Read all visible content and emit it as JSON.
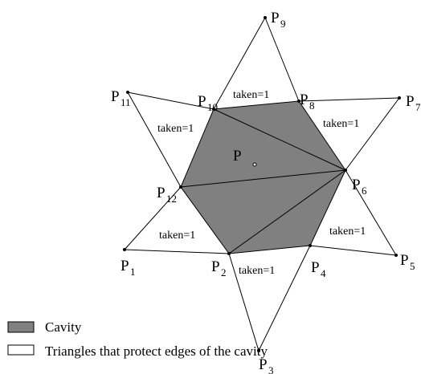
{
  "points": [
    {
      "label": "P",
      "sub": "1"
    },
    {
      "label": "P",
      "sub": "2"
    },
    {
      "label": "P",
      "sub": "3"
    },
    {
      "label": "P",
      "sub": "4"
    },
    {
      "label": "P",
      "sub": "5"
    },
    {
      "label": "P",
      "sub": "6"
    },
    {
      "label": "P",
      "sub": "7"
    },
    {
      "label": "P",
      "sub": "8"
    },
    {
      "label": "P",
      "sub": "9"
    },
    {
      "label": "P",
      "sub": "10"
    },
    {
      "label": "P",
      "sub": "11"
    },
    {
      "label": "P",
      "sub": "12"
    }
  ],
  "center_label": "P",
  "edge_labels": [
    "taken=1",
    "taken=1",
    "taken=1",
    "taken=1",
    "taken=1",
    "taken=1"
  ],
  "legend": [
    {
      "label": "Cavity"
    },
    {
      "label": "Triangles that protect edges of the cavity"
    }
  ]
}
